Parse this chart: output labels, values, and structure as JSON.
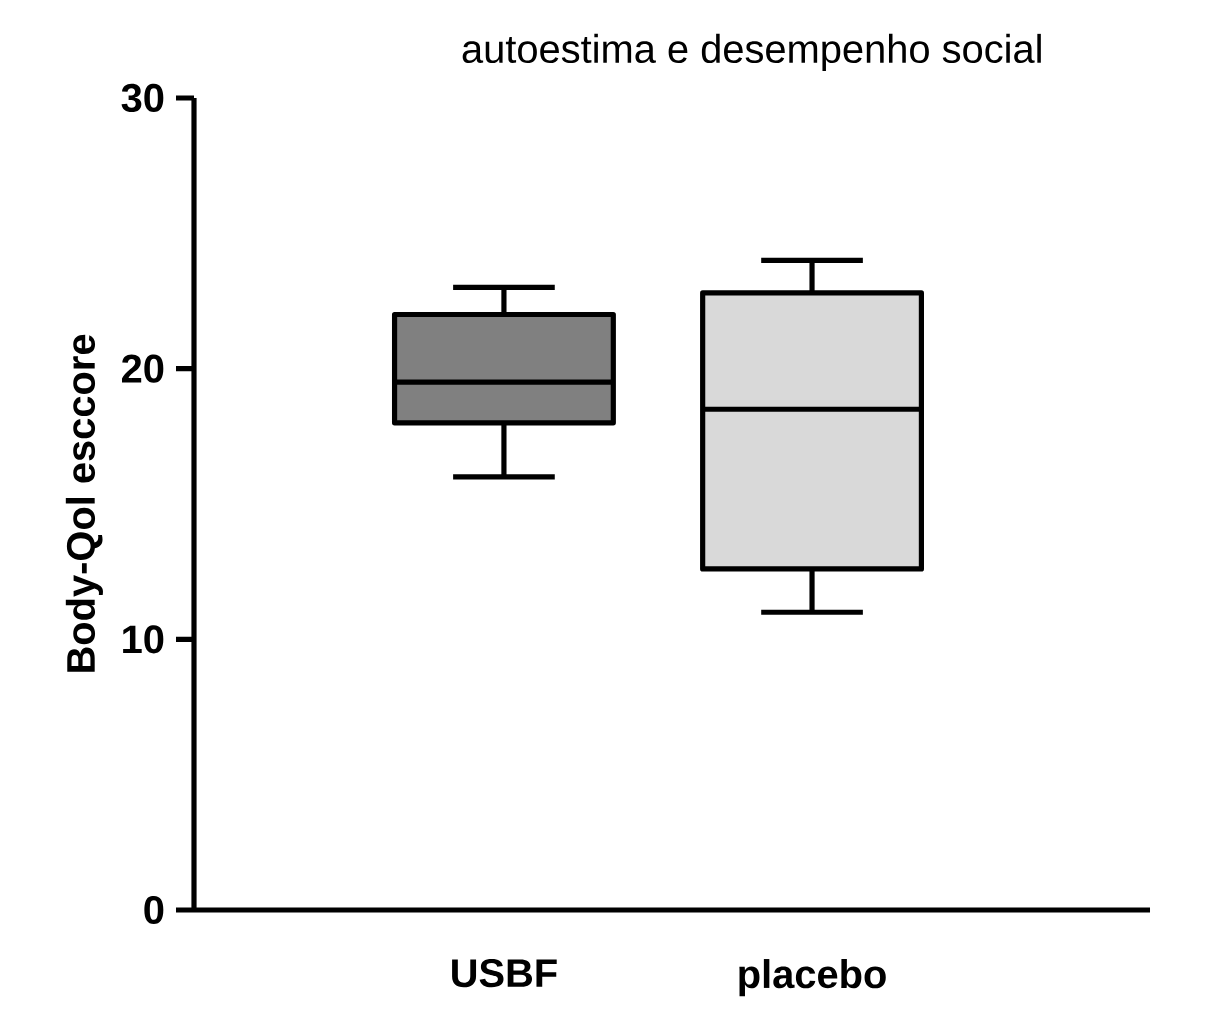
{
  "chart_data": {
    "type": "box",
    "title": "autoestima e desempenho social",
    "ylabel": "Body-Qol esccore",
    "categories": [
      "USBF",
      "placebo"
    ],
    "boxes": [
      {
        "low": 16,
        "q1": 18,
        "median": 19.5,
        "q3": 22,
        "high": 23
      },
      {
        "low": 11,
        "q1": 12.6,
        "median": 18.5,
        "q3": 22.8,
        "high": 24
      }
    ],
    "colors": [
      "#808080",
      "#d9d9d9"
    ],
    "ylim": [
      0,
      30
    ],
    "yticks": [
      0,
      10,
      20,
      30
    ]
  }
}
